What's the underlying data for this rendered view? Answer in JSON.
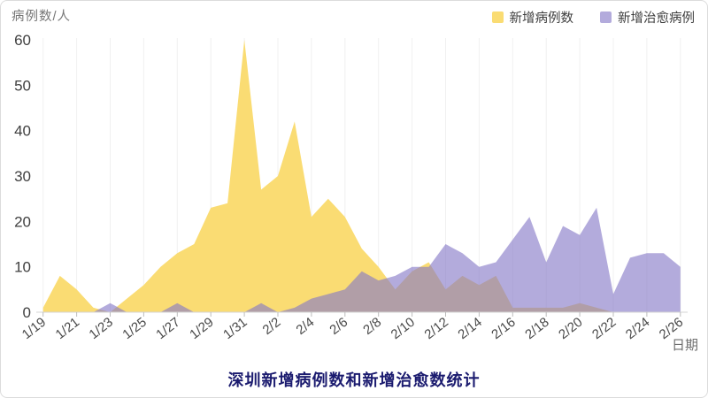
{
  "chart_data": {
    "type": "area",
    "title": "深圳新增病例数和新增治愈数统计",
    "ylabel": "病例数/人",
    "xlabel": "日期",
    "ylim": [
      0,
      60
    ],
    "yticks": [
      0,
      10,
      20,
      30,
      40,
      50,
      60
    ],
    "x_tick_every": 2,
    "grid": "faint-vertical",
    "legend_position": "top-right",
    "x": [
      "1/19",
      "1/20",
      "1/21",
      "1/22",
      "1/23",
      "1/24",
      "1/25",
      "1/26",
      "1/27",
      "1/28",
      "1/29",
      "1/30",
      "1/31",
      "2/1",
      "2/2",
      "2/3",
      "2/4",
      "2/5",
      "2/6",
      "2/7",
      "2/8",
      "2/9",
      "2/10",
      "2/11",
      "2/12",
      "2/13",
      "2/14",
      "2/15",
      "2/16",
      "2/17",
      "2/18",
      "2/19",
      "2/20",
      "2/21",
      "2/22",
      "2/23",
      "2/24",
      "2/25",
      "2/26"
    ],
    "series": [
      {
        "name": "新增病例数",
        "fill": "#FADC73",
        "values": [
          1,
          8,
          5,
          1,
          0,
          3,
          6,
          10,
          13,
          15,
          23,
          24,
          60,
          27,
          30,
          42,
          21,
          25,
          21,
          14,
          10,
          5,
          9,
          11,
          5,
          8,
          6,
          8,
          1,
          1,
          1,
          1,
          2,
          1,
          0,
          0,
          0,
          0,
          0
        ]
      },
      {
        "name": "新增治愈病例",
        "fill": "rgba(133,119,198,0.62)",
        "values": [
          0,
          0,
          0,
          0,
          2,
          0,
          0,
          0,
          2,
          0,
          0,
          0,
          0,
          2,
          0,
          1,
          3,
          4,
          5,
          9,
          7,
          8,
          10,
          10,
          15,
          13,
          10,
          11,
          16,
          21,
          11,
          19,
          17,
          23,
          4,
          12,
          13,
          13,
          10
        ]
      }
    ]
  }
}
